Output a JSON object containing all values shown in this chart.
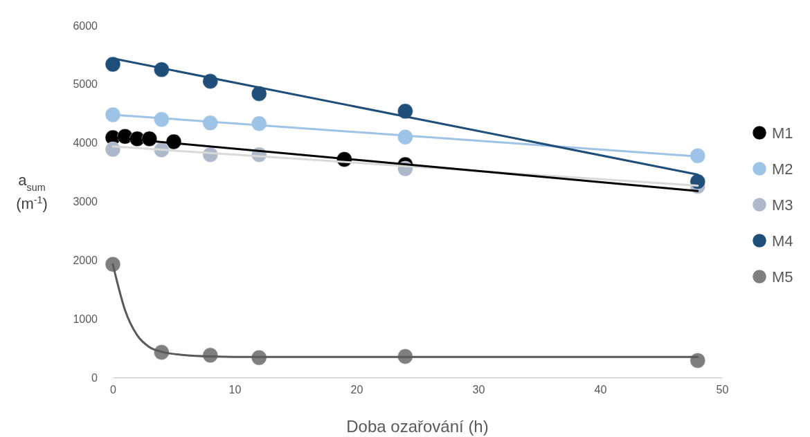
{
  "chart_data": {
    "type": "scatter",
    "xlabel": "Doba ozařování (h)",
    "ylabel": "a$_{sum}$ (m$^{-1}$)",
    "xlim": [
      0,
      50
    ],
    "ylim": [
      0,
      6000
    ],
    "xticks": [
      0,
      10,
      20,
      30,
      40,
      50
    ],
    "yticks": [
      0,
      1000,
      2000,
      3000,
      4000,
      5000,
      6000
    ],
    "grid": false,
    "legend": "right",
    "marker": "circle",
    "series": [
      {
        "type": "line",
        "marker": "none",
        "color": "#d9d9d9",
        "x": [
          0,
          48
        ],
        "values": [
          3940,
          3270
        ]
      },
      {
        "type": "line",
        "marker": "none",
        "color": "#9dc3e6",
        "x": [
          0,
          48
        ],
        "values": [
          4480,
          3770
        ]
      },
      {
        "type": "line",
        "marker": "none",
        "color": "#1f4e79",
        "x": [
          0,
          48
        ],
        "values": [
          5440,
          3460
        ]
      },
      {
        "type": "line",
        "marker": "none",
        "color": "#000000",
        "x": [
          0,
          48
        ],
        "values": [
          4090,
          3180
        ]
      },
      {
        "type": "line",
        "marker": "none",
        "color": "#595959",
        "x": [
          0,
          1,
          2,
          3,
          4,
          6,
          8,
          12,
          24,
          48
        ],
        "values": [
          1930,
          1150,
          720,
          520,
          440,
          380,
          360,
          350,
          350,
          350
        ]
      },
      {
        "name": "M1",
        "color": "#000000",
        "x": [
          0,
          1,
          2,
          3,
          5,
          19,
          24
        ],
        "values": [
          4090,
          4110,
          4070,
          4070,
          4020,
          3720,
          3630
        ]
      },
      {
        "name": "M2",
        "color": "#9dc3e6",
        "x": [
          0,
          4,
          8,
          12,
          24,
          48
        ],
        "values": [
          4480,
          4400,
          4340,
          4330,
          4100,
          3780
        ]
      },
      {
        "name": "M3",
        "color": "#adb9ca",
        "x": [
          0,
          4,
          8,
          12,
          24,
          48
        ],
        "values": [
          3890,
          3880,
          3800,
          3800,
          3560,
          3260
        ]
      },
      {
        "name": "M4",
        "color": "#1f4e79",
        "x": [
          0,
          4,
          8,
          12,
          24,
          48
        ],
        "values": [
          5340,
          5250,
          5050,
          4840,
          4540,
          3340
        ]
      },
      {
        "name": "M5",
        "color": "#7f7f7f",
        "x": [
          0,
          4,
          8,
          12,
          24,
          48
        ],
        "values": [
          1930,
          430,
          380,
          340,
          360,
          290
        ]
      }
    ]
  }
}
